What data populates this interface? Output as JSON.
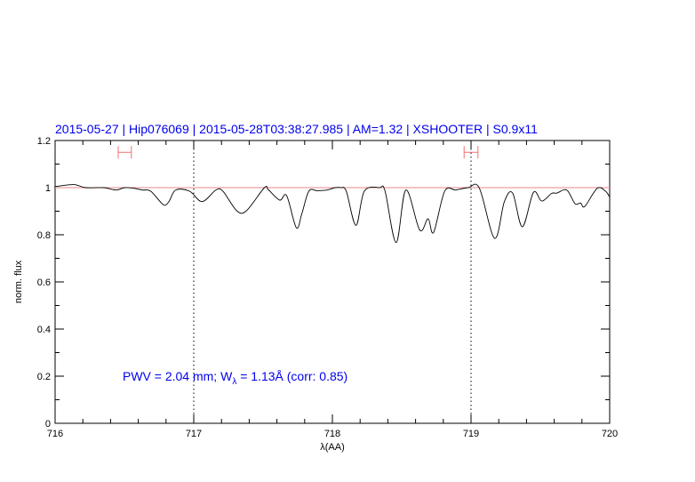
{
  "chart_data": {
    "type": "line",
    "title": "2015-05-27 | Hip076069 | 2015-05-28T03:38:27.985 | AM=1.32 | XSHOOTER | S0.9x11",
    "xlabel": "λ(AA)",
    "ylabel": "norm. flux",
    "xlim": [
      716,
      720
    ],
    "ylim": [
      0,
      1.2
    ],
    "x_ticks": [
      716,
      717,
      718,
      719,
      720
    ],
    "y_ticks": [
      0,
      0.2,
      0.4,
      0.6,
      0.8,
      1,
      1.2
    ],
    "y_tick_labels": [
      "0",
      "0.2",
      "0.4",
      "0.6",
      "0.8",
      "1",
      "1.2"
    ],
    "grid": false,
    "reference_line": {
      "y": 1,
      "color": "#e88888"
    },
    "vertical_dotted_lines": [
      717,
      719
    ],
    "continuum_windows": [
      [
        716.455,
        716.55
      ],
      [
        718.95,
        719.05
      ]
    ],
    "continuum_window_level": 1.15,
    "annotation": {
      "prefix": "PWV  =  2.04  mm;  W",
      "subscript": "λ",
      "suffix": "  =  1.13Å  (corr:  0.85)"
    },
    "colors": {
      "spectrum": "#000000",
      "text": "#0000ee",
      "windows": "#f07070"
    },
    "series": [
      {
        "x": [
          716.0,
          716.01,
          716.135,
          716.22,
          716.35,
          716.44,
          716.5,
          716.56,
          716.63,
          716.69,
          716.78,
          716.82,
          716.87,
          716.97,
          717.06,
          717.16,
          717.21,
          717.31,
          717.38,
          717.51,
          717.54,
          717.62,
          717.67,
          717.74,
          717.78,
          717.83,
          717.89,
          717.96,
          718.02,
          718.06,
          718.1,
          718.17,
          718.23,
          718.34,
          718.38,
          718.46,
          718.53,
          718.63,
          718.69,
          718.73,
          718.81,
          718.89,
          718.98,
          719.06,
          719.17,
          719.24,
          719.3,
          719.37,
          719.45,
          719.51,
          719.58,
          719.62,
          719.69,
          719.75,
          719.79,
          719.82,
          719.91,
          719.97,
          720.0
        ],
        "y": [
          1.003,
          1.005,
          1.013,
          1.0,
          1.0,
          0.99,
          1.0,
          0.998,
          0.99,
          0.985,
          0.928,
          0.94,
          0.99,
          0.985,
          0.941,
          0.99,
          0.985,
          0.902,
          0.902,
          1.0,
          0.99,
          0.947,
          0.966,
          0.83,
          0.89,
          0.985,
          0.987,
          0.99,
          1.0,
          1.0,
          0.985,
          0.84,
          0.985,
          1.0,
          0.985,
          0.767,
          0.99,
          0.82,
          0.868,
          0.81,
          0.985,
          0.99,
          1.0,
          0.998,
          0.785,
          0.94,
          0.977,
          0.834,
          0.98,
          0.943,
          0.975,
          0.977,
          0.99,
          0.932,
          0.935,
          0.92,
          0.997,
          0.985,
          0.96
        ]
      }
    ]
  }
}
